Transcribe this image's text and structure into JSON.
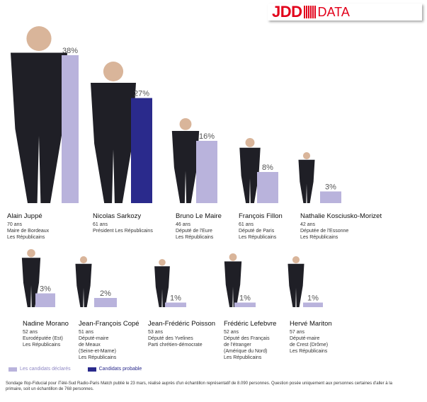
{
  "logo": {
    "jdd": "JDD",
    "data": "DATA"
  },
  "colors": {
    "declared": "#b9b3dc",
    "probable": "#2a2a8c",
    "person_dark": "#1f1f26",
    "skin": "#d9b59a"
  },
  "chart_data": {
    "type": "bar",
    "categories": [
      "Alain Juppé",
      "Nicolas Sarkozy",
      "Bruno Le Maire",
      "François Fillon",
      "Nathalie Kosciusko-Morizet",
      "Nadine Morano",
      "Jean-François Copé",
      "Jean-Frédéric Poisson",
      "Frédéric Lefebvre",
      "Hervé Mariton"
    ],
    "values": [
      38,
      27,
      16,
      8,
      3,
      3,
      2,
      1,
      1,
      1
    ],
    "labels": [
      "38%",
      "27%",
      "16%",
      "8%",
      "3%",
      "3%",
      "2%",
      "1%",
      "1%",
      "1%"
    ],
    "status": [
      "declared",
      "probable",
      "declared",
      "declared",
      "declared",
      "declared",
      "declared",
      "declared",
      "declared",
      "declared"
    ],
    "details": [
      "70 ans\nMaire de Bordeaux\nLes Républicains",
      "61 ans\nPrésident Les Républicains",
      "46 ans\nDéputé de l'Eure\nLes Républicains",
      "61 ans\nDéputé de Paris\nLes Républicains",
      "42 ans\nDéputée de l'Essonne\nLes Républicains",
      "52 ans\nEurodéputée (Est)\nLes Républicains",
      "51 ans\nDéputé-maire\nde Meaux\n(Seine-et-Marne)\nLes Républicains",
      "53 ans\nDéputé des Yvelines\nParti chrétien-démocrate",
      "52 ans\nDéputé des Français\nde l'étranger\n(Amérique du Nord)\nLes Républicains",
      "57 ans\nDéputé-maire\nde Crest (Drôme)\nLes Républicains"
    ],
    "legend": [
      {
        "key": "declared",
        "label": "Les candidats déclarés"
      },
      {
        "key": "probable",
        "label": "Candidats probable"
      }
    ]
  },
  "footnote": "Sondage Ifop-Fiducial pour iTélé-Sud Radio-Paris Match publié le 23 mars, réalisé auprès d'un échantillon représentatif de 8.090 personnes. Question posée uniquement aux personnes certaines d'aller à la primaire, soit un échantillon de 768 personnes."
}
